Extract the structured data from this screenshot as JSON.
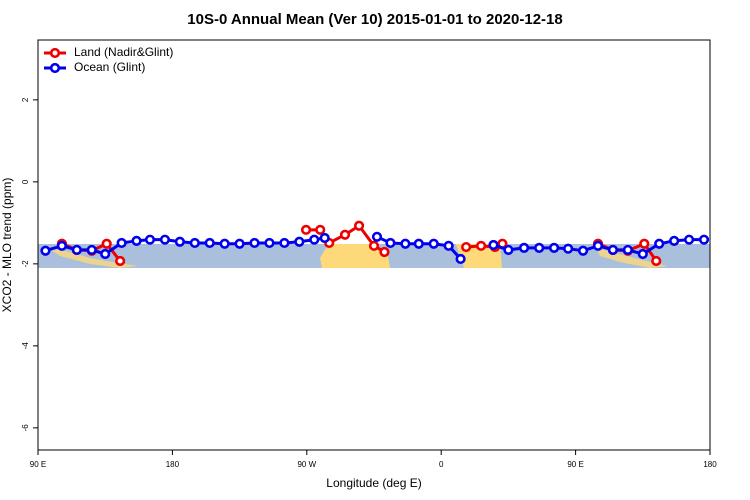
{
  "chart_data": {
    "type": "line",
    "title": "10S-0 Annual Mean (Ver 10)   2015-01-01 to 2020-12-18",
    "x_label": "Longitude (deg E)",
    "y_label": "XCO2 - MLO trend (ppm)",
    "xlim": [
      90,
      540
    ],
    "xticks": [
      {
        "value": 90,
        "label": "90 E"
      },
      180,
      {
        "value": 270,
        "label": "90 W"
      },
      {
        "value": 360,
        "label": "0"
      },
      {
        "value": 450,
        "label": "90 E"
      },
      {
        "value": 540,
        "label": "180"
      }
    ],
    "ylim": [
      -6.54,
      3.46
    ],
    "yticks": [
      2,
      0,
      -2,
      -4,
      -6
    ],
    "legend": "upper left",
    "series": [
      {
        "name": "Land (Nadir&Glint)",
        "color": "#ee0000",
        "x": [
          106,
          116,
          126,
          136,
          145,
          200,
          269.5,
          279,
          285,
          295.6,
          305,
          315,
          322,
          350,
          376.7,
          386.7,
          396,
          401,
          430,
          465,
          475,
          485,
          496,
          504
        ],
        "values": [
          -1.51,
          -1.66,
          -1.68,
          -1.51,
          -1.93,
          null,
          -1.17,
          -1.17,
          -1.49,
          -1.29,
          -1.07,
          -1.56,
          -1.71,
          null,
          -1.59,
          -1.56,
          -1.59,
          -1.51,
          null,
          -1.51,
          -1.66,
          -1.68,
          -1.51,
          -1.93
        ]
      },
      {
        "name": "Ocean (Glint)",
        "color": "#0000ee",
        "x": [
          95,
          106,
          116,
          126,
          135,
          146,
          156,
          165,
          175,
          185,
          195,
          205,
          215,
          225,
          235,
          245,
          255,
          265,
          275,
          282,
          300,
          317,
          326,
          336,
          345,
          355,
          365,
          373,
          385,
          395,
          405,
          415.5,
          425.6,
          435.6,
          445,
          455,
          465,
          475,
          485,
          495,
          506,
          516,
          526,
          536
        ],
        "values": [
          -1.68,
          -1.56,
          -1.66,
          -1.66,
          -1.76,
          -1.49,
          -1.44,
          -1.41,
          -1.41,
          -1.46,
          -1.49,
          -1.49,
          -1.51,
          -1.51,
          -1.49,
          -1.49,
          -1.49,
          -1.46,
          -1.41,
          -1.37,
          null,
          -1.34,
          -1.49,
          -1.51,
          -1.51,
          -1.51,
          -1.56,
          -1.88,
          null,
          -1.54,
          -1.66,
          -1.61,
          -1.61,
          -1.61,
          -1.63,
          -1.68,
          -1.56,
          -1.66,
          -1.66,
          -1.76,
          -1.51,
          -1.44,
          -1.41,
          -1.41
        ]
      }
    ]
  }
}
